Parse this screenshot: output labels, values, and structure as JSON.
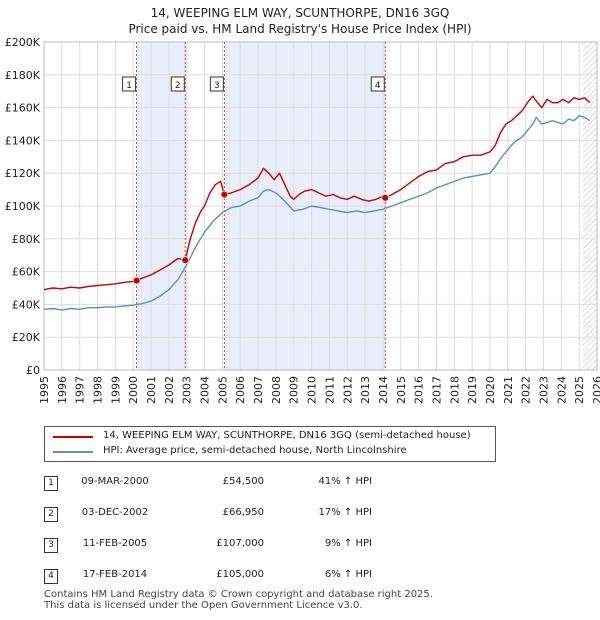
{
  "title_line1": "14, WEEPING ELM WAY, SCUNTHORPE, DN16 3GQ",
  "title_line2": "Price paid vs. HM Land Registry's House Price Index (HPI)",
  "colors": {
    "property": "#cc0000",
    "hpi": "#5b8fc9",
    "shade": "#e8eefa",
    "grid": "#dddddd",
    "vline": "#d04040"
  },
  "chart_data": {
    "type": "line",
    "title": "Price paid vs. HM Land Registry's House Price Index (HPI)",
    "xlabel": "",
    "ylabel": "",
    "xlim": [
      1995,
      2026
    ],
    "ylim": [
      0,
      200000
    ],
    "x_ticks": [
      1995,
      1996,
      1997,
      1998,
      1999,
      2000,
      2001,
      2002,
      2003,
      2004,
      2005,
      2006,
      2007,
      2008,
      2009,
      2010,
      2011,
      2012,
      2013,
      2014,
      2015,
      2016,
      2017,
      2018,
      2019,
      2020,
      2021,
      2022,
      2023,
      2024,
      2025,
      2026
    ],
    "y_ticks": [
      {
        "value": 0,
        "label": "£0"
      },
      {
        "value": 20000,
        "label": "£20K"
      },
      {
        "value": 40000,
        "label": "£40K"
      },
      {
        "value": 60000,
        "label": "£60K"
      },
      {
        "value": 80000,
        "label": "£80K"
      },
      {
        "value": 100000,
        "label": "£100K"
      },
      {
        "value": 120000,
        "label": "£120K"
      },
      {
        "value": 140000,
        "label": "£140K"
      },
      {
        "value": 160000,
        "label": "£160K"
      },
      {
        "value": 180000,
        "label": "£180K"
      },
      {
        "value": 200000,
        "label": "£200K"
      }
    ],
    "shaded_ranges": [
      [
        2000.19,
        2002.92
      ],
      [
        2005.11,
        2014.13
      ]
    ],
    "hatched_from": 2025.2,
    "series": [
      {
        "name": "property",
        "x": [
          1995.0,
          1995.5,
          1996.0,
          1996.5,
          1997.0,
          1997.5,
          1998.0,
          1998.5,
          1999.0,
          1999.5,
          2000.0,
          2000.19,
          2000.5,
          2001.0,
          2001.5,
          2002.0,
          2002.5,
          2002.92,
          2003.2,
          2003.5,
          2003.8,
          2004.0,
          2004.3,
          2004.6,
          2004.9,
          2005.11,
          2005.5,
          2006.0,
          2006.5,
          2007.0,
          2007.3,
          2007.6,
          2007.9,
          2008.2,
          2008.5,
          2008.8,
          2009.0,
          2009.3,
          2009.6,
          2010.0,
          2010.4,
          2010.8,
          2011.2,
          2011.6,
          2012.0,
          2012.4,
          2012.8,
          2013.2,
          2013.6,
          2014.0,
          2014.13,
          2014.5,
          2015.0,
          2015.5,
          2016.0,
          2016.5,
          2017.0,
          2017.5,
          2018.0,
          2018.5,
          2019.0,
          2019.5,
          2020.0,
          2020.3,
          2020.6,
          2020.9,
          2021.2,
          2021.5,
          2021.8,
          2022.1,
          2022.4,
          2022.6,
          2022.9,
          2023.2,
          2023.5,
          2023.8,
          2024.1,
          2024.4,
          2024.7,
          2025.0,
          2025.3,
          2025.6
        ],
        "y": [
          49000,
          50000,
          49500,
          50500,
          50000,
          51000,
          51500,
          52000,
          52500,
          53500,
          54000,
          54500,
          56000,
          58000,
          61000,
          64000,
          68000,
          66950,
          80000,
          90000,
          97000,
          100000,
          108000,
          113000,
          115000,
          107000,
          108000,
          110000,
          113000,
          117000,
          123000,
          120000,
          116000,
          120000,
          113000,
          106000,
          104000,
          107000,
          109000,
          110000,
          108000,
          106000,
          107000,
          105000,
          104000,
          106000,
          104000,
          103000,
          104000,
          106000,
          105000,
          107000,
          110000,
          114000,
          118000,
          121000,
          122000,
          126000,
          127000,
          130000,
          131000,
          131000,
          133000,
          137000,
          145000,
          150000,
          152000,
          155000,
          158000,
          163000,
          167000,
          164000,
          160000,
          165000,
          163000,
          163000,
          165000,
          163000,
          166000,
          165000,
          166000,
          163000
        ]
      },
      {
        "name": "hpi",
        "x": [
          1995.0,
          1995.5,
          1996.0,
          1996.5,
          1997.0,
          1997.5,
          1998.0,
          1998.5,
          1999.0,
          1999.5,
          2000.0,
          2000.5,
          2001.0,
          2001.5,
          2002.0,
          2002.5,
          2003.0,
          2003.5,
          2004.0,
          2004.5,
          2005.0,
          2005.5,
          2006.0,
          2006.5,
          2007.0,
          2007.3,
          2007.6,
          2008.0,
          2008.5,
          2009.0,
          2009.5,
          2010.0,
          2010.5,
          2011.0,
          2011.5,
          2012.0,
          2012.5,
          2013.0,
          2013.5,
          2014.0,
          2014.5,
          2015.0,
          2015.5,
          2016.0,
          2016.5,
          2017.0,
          2017.5,
          2018.0,
          2018.5,
          2019.0,
          2019.5,
          2020.0,
          2020.3,
          2020.6,
          2020.9,
          2021.2,
          2021.5,
          2021.8,
          2022.1,
          2022.4,
          2022.6,
          2022.9,
          2023.2,
          2023.5,
          2023.8,
          2024.1,
          2024.4,
          2024.7,
          2025.0,
          2025.3,
          2025.6
        ],
        "y": [
          37000,
          37500,
          36500,
          37500,
          37000,
          38000,
          38000,
          38500,
          38500,
          39000,
          39500,
          40500,
          42000,
          45000,
          49000,
          55000,
          64000,
          75000,
          84000,
          91000,
          96000,
          99000,
          100000,
          103000,
          105000,
          109000,
          110000,
          108000,
          103000,
          97000,
          98000,
          100000,
          99000,
          98000,
          97000,
          96000,
          97000,
          96000,
          97000,
          98000,
          100000,
          102000,
          104000,
          106000,
          108000,
          111000,
          113000,
          115000,
          117000,
          118000,
          119000,
          120000,
          124000,
          129000,
          133000,
          137000,
          140000,
          142000,
          146000,
          150000,
          154000,
          150000,
          151000,
          152000,
          151000,
          150000,
          153000,
          152000,
          155000,
          154000,
          152000
        ]
      }
    ],
    "markers": [
      {
        "n": "1",
        "x": 2000.19,
        "y": 54500
      },
      {
        "n": "2",
        "x": 2002.92,
        "y": 66950
      },
      {
        "n": "3",
        "x": 2005.11,
        "y": 107000
      },
      {
        "n": "4",
        "x": 2014.13,
        "y": 105000
      }
    ]
  },
  "legend": {
    "property_label": "14, WEEPING ELM WAY, SCUNTHORPE, DN16 3GQ (semi-detached house)",
    "hpi_label": "HPI: Average price, semi-detached house, North Lincolnshire"
  },
  "sales": [
    {
      "n": "1",
      "date": "09-MAR-2000",
      "price": "£54,500",
      "delta": "41% ↑ HPI"
    },
    {
      "n": "2",
      "date": "03-DEC-2002",
      "price": "£66,950",
      "delta": "17% ↑ HPI"
    },
    {
      "n": "3",
      "date": "11-FEB-2005",
      "price": "£107,000",
      "delta": "9% ↑ HPI"
    },
    {
      "n": "4",
      "date": "17-FEB-2014",
      "price": "£105,000",
      "delta": "6% ↑ HPI"
    }
  ],
  "footer": {
    "line1": "Contains HM Land Registry data © Crown copyright and database right 2025.",
    "line2": "This data is licensed under the Open Government Licence v3.0."
  }
}
